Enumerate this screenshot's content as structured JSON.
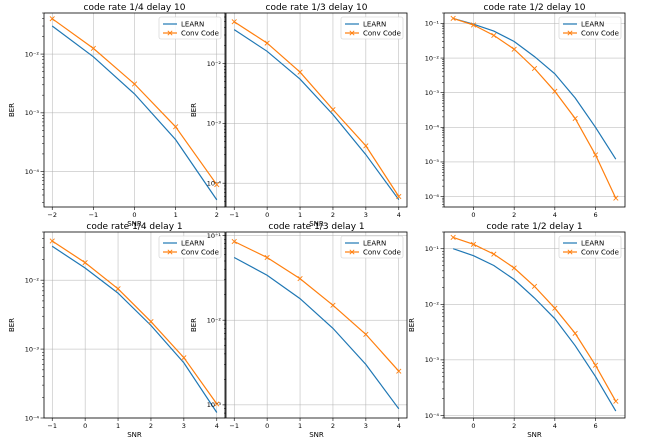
{
  "colors": {
    "learn": "#1f77b4",
    "conv": "#ff7f0e",
    "grid": "#b0b0b0"
  },
  "chart_data": [
    {
      "type": "line",
      "title": "code rate 1/4 delay 10",
      "xlabel": "SNR",
      "ylabel": "BER",
      "yscale": "log",
      "xlim": [
        -2.2,
        2.2
      ],
      "ylim": [
        2.5e-05,
        0.05
      ],
      "xticks": [
        -2,
        -1,
        0,
        1,
        2
      ],
      "xtick_labels": [
        "−2",
        "−1",
        "0",
        "1",
        "2"
      ],
      "yticks": [
        0.0001,
        0.001,
        0.01
      ],
      "ytick_labels": [
        "10⁻⁴",
        "10⁻³",
        "10⁻²"
      ],
      "grid": true,
      "legend": "top-right",
      "series": [
        {
          "name": "LEARN",
          "marker": "none",
          "x": [
            -2,
            -1,
            0,
            1,
            2
          ],
          "y": [
            0.03,
            0.009,
            0.0021,
            0.00035,
            3.3e-05
          ]
        },
        {
          "name": "Conv Code",
          "marker": "x",
          "x": [
            -2,
            -1,
            0,
            1,
            2
          ],
          "y": [
            0.04,
            0.0125,
            0.0031,
            0.00058,
            6e-05
          ]
        }
      ]
    },
    {
      "type": "line",
      "title": "code rate 1/3 delay 10",
      "xlabel": "SNR",
      "ylabel": "BER",
      "yscale": "log",
      "xlim": [
        -1.25,
        4.25
      ],
      "ylim": [
        4e-05,
        0.07
      ],
      "xticks": [
        -1,
        0,
        1,
        2,
        3,
        4
      ],
      "xtick_labels": [
        "−1",
        "0",
        "1",
        "2",
        "3",
        "4"
      ],
      "yticks": [
        0.0001,
        0.001,
        0.01
      ],
      "ytick_labels": [
        "10⁻⁴",
        "10⁻³",
        "10⁻²"
      ],
      "grid": true,
      "legend": "top-right",
      "series": [
        {
          "name": "LEARN",
          "marker": "none",
          "x": [
            -1,
            0,
            1,
            2,
            3,
            4
          ],
          "y": [
            0.037,
            0.016,
            0.0055,
            0.0014,
            0.0003,
            5.3e-05
          ]
        },
        {
          "name": "Conv Code",
          "marker": "x",
          "x": [
            -1,
            0,
            1,
            2,
            3,
            4
          ],
          "y": [
            0.05,
            0.022,
            0.0072,
            0.0017,
            0.00042,
            6e-05
          ]
        }
      ]
    },
    {
      "type": "line",
      "title": "code rate 1/2 delay 10",
      "xlabel": "",
      "ylabel": "",
      "yscale": "log",
      "xlim": [
        -1.45,
        7.45
      ],
      "ylim": [
        5e-07,
        0.2
      ],
      "xticks": [
        0,
        2,
        4,
        6
      ],
      "xtick_labels": [
        "0",
        "2",
        "4",
        "6"
      ],
      "yticks": [
        1e-06,
        1e-05,
        0.0001,
        0.001,
        0.01,
        0.1
      ],
      "ytick_labels": [
        "10⁻⁶",
        "10⁻⁵",
        "10⁻⁴",
        "10⁻³",
        "10⁻²",
        "10⁻¹"
      ],
      "grid": true,
      "legend": "top-right",
      "series": [
        {
          "name": "LEARN",
          "marker": "none",
          "x": [
            -1,
            0,
            1,
            2,
            3,
            4,
            5,
            6,
            7
          ],
          "y": [
            0.14,
            0.095,
            0.06,
            0.03,
            0.011,
            0.0035,
            0.0007,
            0.0001,
            1.2e-05
          ]
        },
        {
          "name": "Conv Code",
          "marker": "x",
          "x": [
            -1,
            0,
            1,
            2,
            3,
            4,
            5,
            6,
            7
          ],
          "y": [
            0.14,
            0.09,
            0.045,
            0.018,
            0.005,
            0.0011,
            0.00018,
            1.6e-05,
            9e-07
          ]
        }
      ]
    },
    {
      "type": "line",
      "title": "code rate 1/4 delay 1",
      "xlabel": "SNR",
      "ylabel": "BER",
      "yscale": "log",
      "xlim": [
        -1.25,
        4.25
      ],
      "ylim": [
        0.0001,
        0.05
      ],
      "xticks": [
        -1,
        0,
        1,
        2,
        3,
        4
      ],
      "xtick_labels": [
        "−1",
        "0",
        "1",
        "2",
        "3",
        "4"
      ],
      "yticks": [
        0.0001,
        0.001,
        0.01
      ],
      "ytick_labels": [
        "10⁻⁴",
        "10⁻³",
        "10⁻²"
      ],
      "grid": true,
      "legend": "top-right",
      "series": [
        {
          "name": "LEARN",
          "marker": "none",
          "x": [
            -1,
            0,
            1,
            2,
            3,
            4
          ],
          "y": [
            0.031,
            0.015,
            0.0065,
            0.0022,
            0.00063,
            0.00012
          ]
        },
        {
          "name": "Conv Code",
          "marker": "x",
          "x": [
            -1,
            0,
            1,
            2,
            3,
            4
          ],
          "y": [
            0.037,
            0.018,
            0.0075,
            0.0025,
            0.00075,
            0.00016
          ]
        }
      ]
    },
    {
      "type": "line",
      "title": "code rate 1/3 delay 1",
      "xlabel": "SNR",
      "ylabel": "BER",
      "yscale": "log",
      "xlim": [
        -1.25,
        4.25
      ],
      "ylim": [
        0.0007,
        0.11
      ],
      "xticks": [
        -1,
        0,
        1,
        2,
        3,
        4
      ],
      "xtick_labels": [
        "−1",
        "0",
        "1",
        "2",
        "3",
        "4"
      ],
      "yticks": [
        0.001,
        0.01,
        0.1
      ],
      "ytick_labels": [
        "10⁻³",
        "10⁻²",
        "10⁻¹"
      ],
      "grid": true,
      "legend": "top-right",
      "series": [
        {
          "name": "LEARN",
          "marker": "none",
          "x": [
            -1,
            0,
            1,
            2,
            3,
            4
          ],
          "y": [
            0.055,
            0.034,
            0.018,
            0.008,
            0.003,
            0.0009
          ]
        },
        {
          "name": "Conv Code",
          "marker": "x",
          "x": [
            -1,
            0,
            1,
            2,
            3,
            4
          ],
          "y": [
            0.085,
            0.055,
            0.031,
            0.015,
            0.0068,
            0.0025
          ]
        }
      ]
    },
    {
      "type": "line",
      "title": "code rate 1/2 delay 1",
      "xlabel": "SNR",
      "ylabel": "BER",
      "yscale": "log",
      "xlim": [
        -1.45,
        7.45
      ],
      "ylim": [
        9e-05,
        0.2
      ],
      "xticks": [
        0,
        2,
        4,
        6
      ],
      "xtick_labels": [
        "0",
        "2",
        "4",
        "6"
      ],
      "yticks": [
        0.0001,
        0.001,
        0.01,
        0.1
      ],
      "ytick_labels": [
        "10⁻⁴",
        "10⁻³",
        "10⁻²",
        "10⁻¹"
      ],
      "grid": true,
      "legend": "top-right",
      "series": [
        {
          "name": "LEARN",
          "marker": "none",
          "x": [
            -1,
            0,
            1,
            2,
            3,
            4,
            5,
            6,
            7
          ],
          "y": [
            0.1,
            0.075,
            0.05,
            0.028,
            0.013,
            0.0055,
            0.0018,
            0.0005,
            0.00012
          ]
        },
        {
          "name": "Conv Code",
          "marker": "x",
          "x": [
            -1,
            0,
            1,
            2,
            3,
            4,
            5,
            6,
            7
          ],
          "y": [
            0.16,
            0.12,
            0.08,
            0.045,
            0.021,
            0.0085,
            0.003,
            0.0008,
            0.00018
          ]
        }
      ]
    }
  ]
}
